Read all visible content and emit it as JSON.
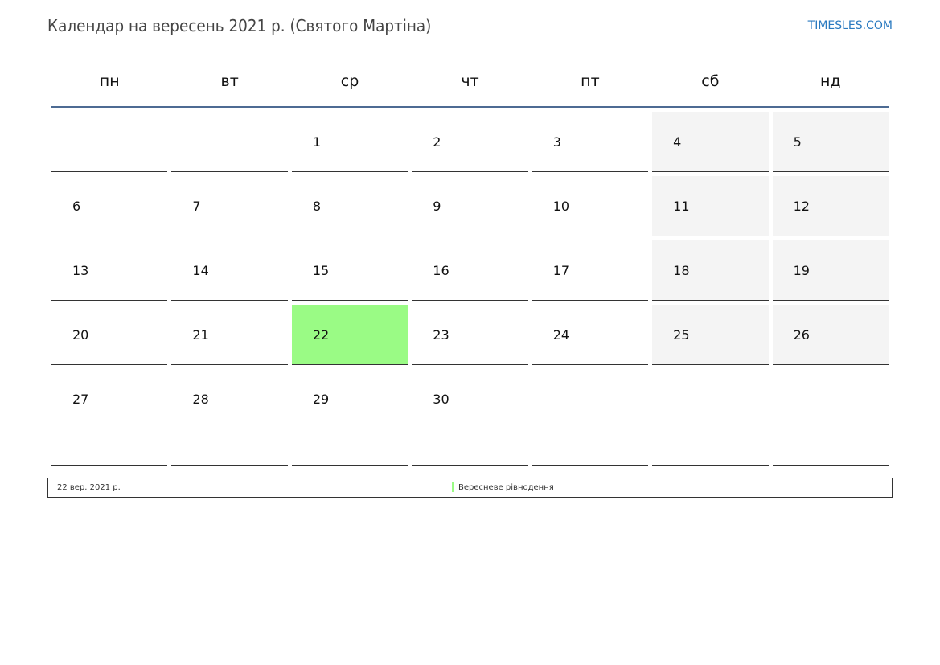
{
  "header": {
    "title": "Календар на вересень 2021 р. (Святого Мартіна)",
    "site": "TIMESLES.COM"
  },
  "weekdays": [
    "пн",
    "вт",
    "ср",
    "чт",
    "пт",
    "сб",
    "нд"
  ],
  "weeks": [
    [
      "",
      "",
      "1",
      "2",
      "3",
      "4",
      "5"
    ],
    [
      "6",
      "7",
      "8",
      "9",
      "10",
      "11",
      "12"
    ],
    [
      "13",
      "14",
      "15",
      "16",
      "17",
      "18",
      "19"
    ],
    [
      "20",
      "21",
      "22",
      "23",
      "24",
      "25",
      "26"
    ],
    [
      "27",
      "28",
      "29",
      "30",
      "",
      "",
      ""
    ]
  ],
  "highlighted_day": "22",
  "colors": {
    "holiday": "#9afb85",
    "weekend": "#f4f4f4",
    "header_line": "#4d6b93"
  },
  "legend": {
    "date": "22 вер. 2021 р.",
    "name": "Вересневе рівнодення"
  }
}
